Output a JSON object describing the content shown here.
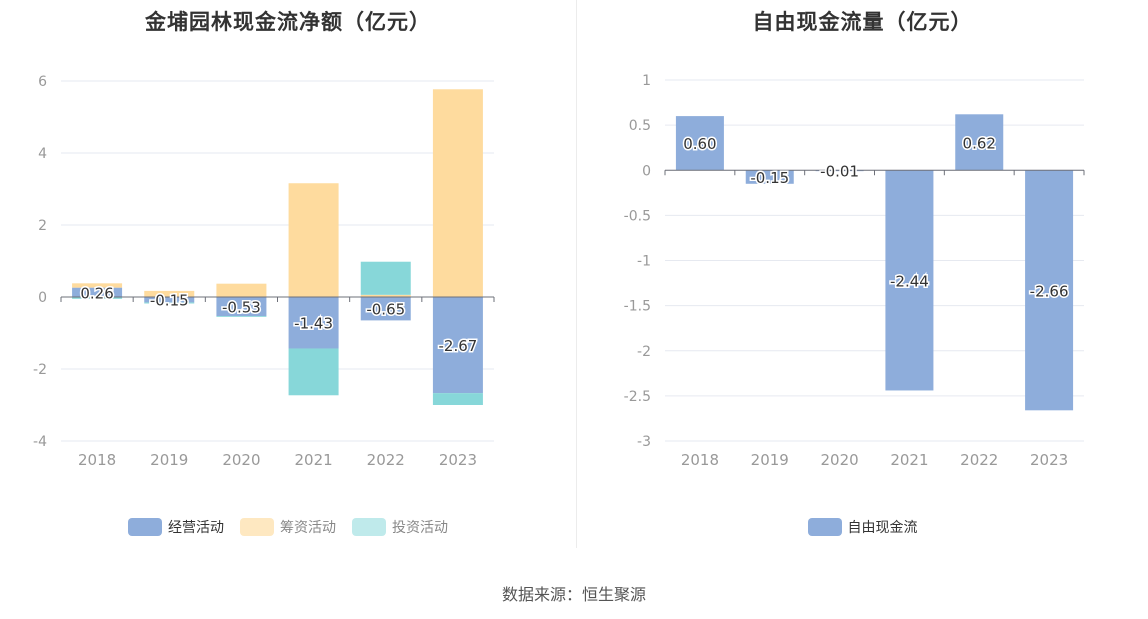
{
  "chart_data": [
    {
      "type": "bar",
      "stacked": true,
      "title": "金埔园林现金流净额（亿元）",
      "categories": [
        "2018",
        "2019",
        "2020",
        "2021",
        "2022",
        "2023"
      ],
      "series": [
        {
          "name": "经营活动",
          "color": "#8eaddb",
          "values": [
            0.26,
            -0.15,
            -0.53,
            -1.43,
            -0.65,
            -2.67
          ]
        },
        {
          "name": "筹资活动",
          "color": "#fedb9e",
          "values": [
            0.12,
            0.17,
            0.37,
            3.16,
            0.06,
            5.77
          ]
        },
        {
          "name": "投资活动",
          "color": "#87d7d9",
          "values": [
            -0.05,
            -0.03,
            -0.02,
            -1.3,
            0.92,
            -0.33
          ]
        }
      ],
      "data_labels": [
        "0.26",
        "-0.15",
        "-0.53",
        "-1.43",
        "-0.65",
        "-2.67"
      ],
      "yticks": [
        "6",
        "4",
        "2",
        "0",
        "-2",
        "-4"
      ],
      "ylim": [
        -4,
        6
      ],
      "xlabel": "",
      "ylabel": "",
      "legend": "bottom-center"
    },
    {
      "type": "bar",
      "title": "自由现金流量（亿元）",
      "categories": [
        "2018",
        "2019",
        "2020",
        "2021",
        "2022",
        "2023"
      ],
      "series": [
        {
          "name": "自由现金流",
          "color": "#8eaddb",
          "values": [
            0.6,
            -0.15,
            -0.01,
            -2.44,
            0.62,
            -2.66
          ]
        }
      ],
      "data_labels": [
        "0.60",
        "-0.15",
        "-0.01",
        "-2.44",
        "0.62",
        "-2.66"
      ],
      "yticks": [
        "1",
        "0.5",
        "0",
        "-0.5",
        "-1",
        "-1.5",
        "-2",
        "-2.5",
        "-3"
      ],
      "ylim": [
        -3,
        1
      ],
      "xlabel": "",
      "ylabel": "",
      "legend": "bottom-center"
    }
  ],
  "source": "数据来源：恒生聚源"
}
